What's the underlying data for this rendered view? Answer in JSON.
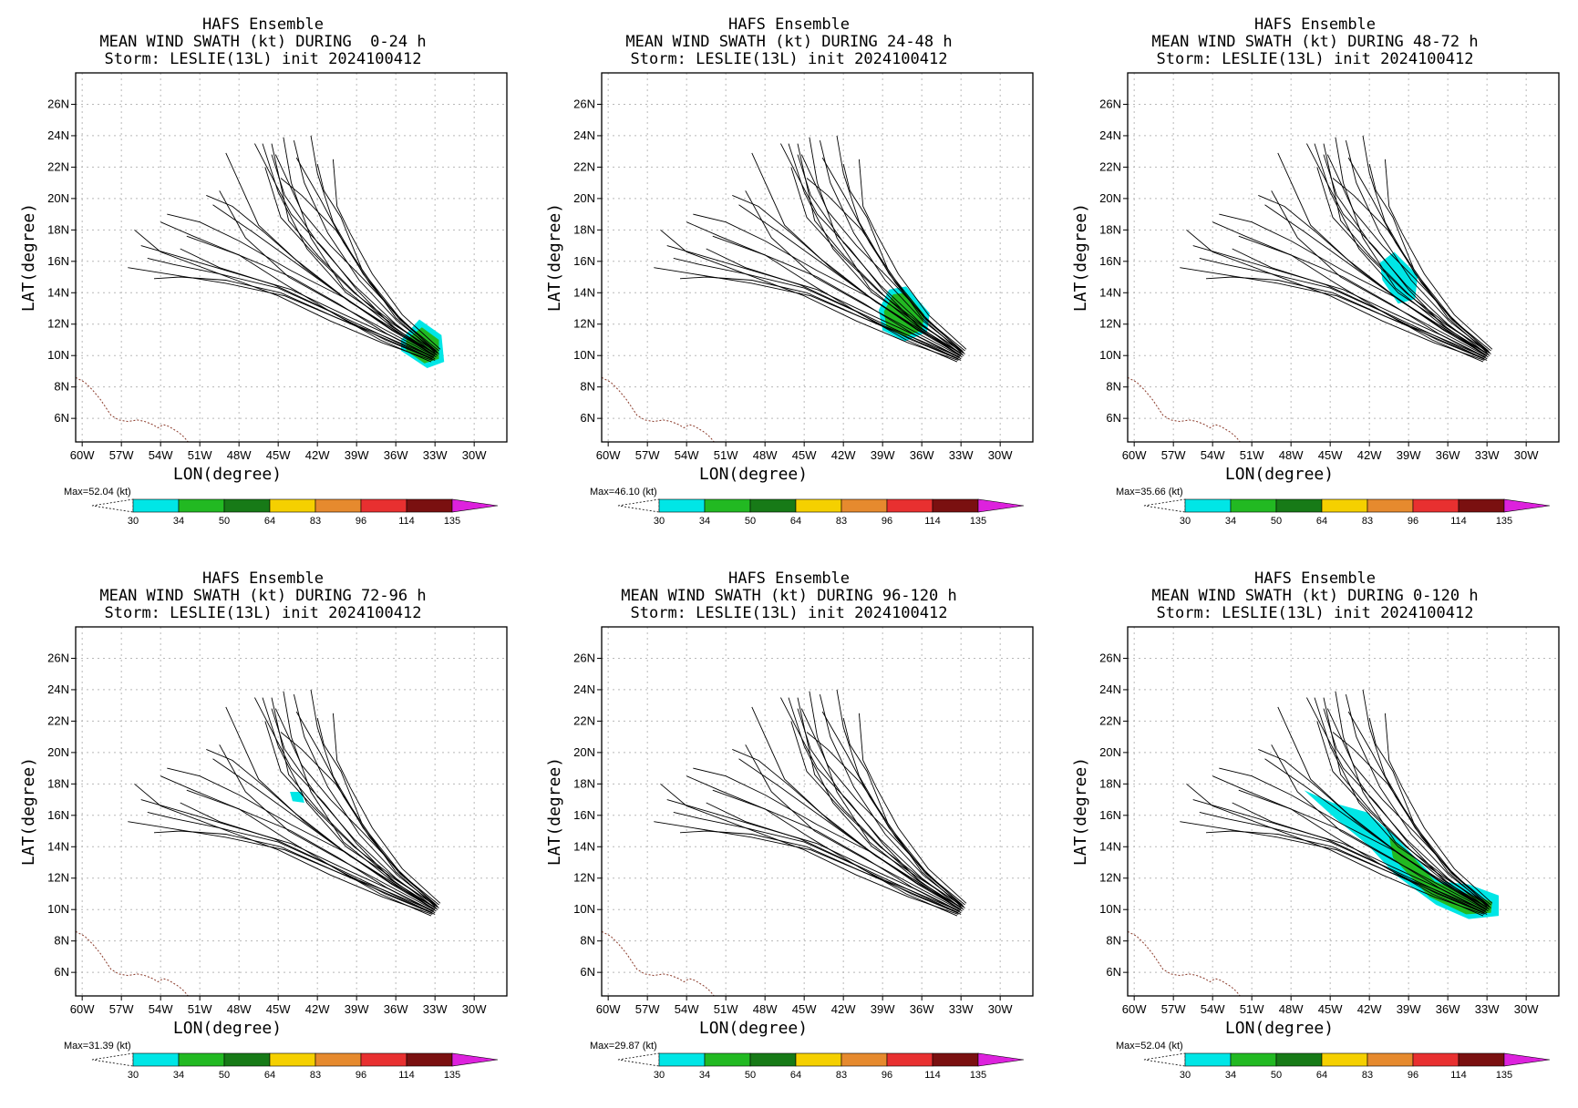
{
  "figure": {
    "panels": [
      {
        "title": [
          "HAFS Ensemble",
          "MEAN WIND SWATH (kt) DURING  0-24 h",
          "Storm: LESLIE(13L) init 2024100412"
        ],
        "max_label": "Max=52.04 (kt)",
        "swath": {
          "cyan": [
            [
              -35.6,
              11.0
            ],
            [
              -34.2,
              12.3
            ],
            [
              -32.5,
              11.3
            ],
            [
              -32.3,
              9.6
            ],
            [
              -33.6,
              9.2
            ],
            [
              -35.6,
              10.3
            ]
          ],
          "green": [
            [
              -35.2,
              11.0
            ],
            [
              -34.0,
              11.8
            ],
            [
              -32.7,
              11.0
            ],
            [
              -32.7,
              9.8
            ],
            [
              -33.8,
              9.5
            ],
            [
              -35.2,
              10.3
            ]
          ]
        }
      },
      {
        "title": [
          "HAFS Ensemble",
          "MEAN WIND SWATH (kt) DURING 24-48 h",
          "Storm: LESLIE(13L) init 2024100412"
        ],
        "max_label": "Max=46.10 (kt)",
        "swath": {
          "cyan": [
            [
              -39.3,
              12.9
            ],
            [
              -38.5,
              14.2
            ],
            [
              -37.2,
              14.4
            ],
            [
              -35.4,
              12.7
            ],
            [
              -35.6,
              11.5
            ],
            [
              -37.3,
              10.9
            ],
            [
              -39.0,
              11.6
            ]
          ],
          "green": [
            [
              -38.9,
              12.8
            ],
            [
              -38.2,
              13.9
            ],
            [
              -37.2,
              14.0
            ],
            [
              -35.8,
              12.6
            ],
            [
              -36.0,
              11.6
            ],
            [
              -37.3,
              11.2
            ],
            [
              -38.7,
              11.8
            ]
          ]
        }
      },
      {
        "title": [
          "HAFS Ensemble",
          "MEAN WIND SWATH (kt) DURING 48-72 h",
          "Storm: LESLIE(13L) init 2024100412"
        ],
        "max_label": "Max=35.66 (kt)",
        "swath": {
          "cyan": [
            [
              -41.2,
              15.9
            ],
            [
              -40.1,
              16.6
            ],
            [
              -38.3,
              15.1
            ],
            [
              -38.5,
              13.6
            ],
            [
              -39.8,
              13.3
            ],
            [
              -41.0,
              14.8
            ]
          ],
          "green": []
        }
      },
      {
        "title": [
          "HAFS Ensemble",
          "MEAN WIND SWATH (kt) DURING 72-96 h",
          "Storm: LESLIE(13L) init 2024100412"
        ],
        "max_label": "Max=31.39 (kt)",
        "swath": {
          "cyan": [
            [
              -44.1,
              17.5
            ],
            [
              -43.2,
              17.5
            ],
            [
              -43.0,
              16.8
            ],
            [
              -43.9,
              16.9
            ]
          ],
          "green": []
        }
      },
      {
        "title": [
          "HAFS Ensemble",
          "MEAN WIND SWATH (kt) DURING 96-120 h",
          "Storm: LESLIE(13L) init 2024100412"
        ],
        "max_label": "Max=29.87 (kt)",
        "swath": {
          "cyan": [],
          "green": []
        }
      },
      {
        "title": [
          "HAFS Ensemble",
          "MEAN WIND SWATH (kt) DURING 0-120 h",
          "Storm: LESLIE(13L) init 2024100412"
        ],
        "max_label": "Max=52.04 (kt)",
        "swath": {
          "cyan": [
            [
              -47.0,
              17.6
            ],
            [
              -44.8,
              16.8
            ],
            [
              -42.2,
              16.2
            ],
            [
              -40.2,
              14.8
            ],
            [
              -38.6,
              13.4
            ],
            [
              -36.7,
              11.8
            ],
            [
              -34.4,
              11.6
            ],
            [
              -32.1,
              10.9
            ],
            [
              -32.1,
              9.6
            ],
            [
              -34.4,
              9.4
            ],
            [
              -36.9,
              10.3
            ],
            [
              -40.0,
              12.2
            ],
            [
              -42.1,
              14.1
            ],
            [
              -44.6,
              15.8
            ]
          ],
          "green": [
            [
              -40.5,
              14.7
            ],
            [
              -38.6,
              13.3
            ],
            [
              -37.0,
              11.8
            ],
            [
              -34.5,
              11.0
            ],
            [
              -32.6,
              10.5
            ],
            [
              -32.7,
              9.8
            ],
            [
              -34.6,
              9.7
            ],
            [
              -37.4,
              10.8
            ],
            [
              -40.2,
              13.3
            ]
          ]
        }
      }
    ],
    "axes": {
      "xlabel": "LON(degree)",
      "ylabel": "LAT(degree)",
      "xticks": [
        "60W",
        "57W",
        "54W",
        "51W",
        "48W",
        "45W",
        "42W",
        "39W",
        "36W",
        "33W",
        "30W"
      ],
      "yticks": [
        "6N",
        "8N",
        "10N",
        "12N",
        "14N",
        "16N",
        "18N",
        "20N",
        "22N",
        "24N",
        "26N"
      ],
      "xlim": [
        -60.5,
        -27.5
      ],
      "ylim": [
        4.5,
        28.0
      ]
    },
    "colorbar": {
      "labels": [
        "30",
        "34",
        "50",
        "64",
        "83",
        "96",
        "114",
        "135"
      ],
      "colors": [
        "#00e6e6",
        "#22b922",
        "#177a17",
        "#f5d000",
        "#e68a2e",
        "#e83030",
        "#7a1010",
        "#dd22dd"
      ]
    }
  },
  "chart_data": {
    "type": "map",
    "description_units": "knots",
    "tracks_note": "ensemble member tracks of storm LESLIE(13L) starting near 33W 10N moving northwest",
    "tracks": [
      [
        [
          -33.0,
          10.0
        ],
        [
          -36.0,
          11.6
        ],
        [
          -39.5,
          13.4
        ],
        [
          -43.0,
          15.6
        ],
        [
          -46.5,
          18.3
        ],
        [
          -49.0,
          22.9
        ]
      ],
      [
        [
          -32.8,
          10.2
        ],
        [
          -36.2,
          12.0
        ],
        [
          -39.8,
          14.0
        ],
        [
          -42.8,
          16.8
        ],
        [
          -45.0,
          20.4
        ],
        [
          -46.2,
          23.5
        ]
      ],
      [
        [
          -33.0,
          9.8
        ],
        [
          -36.5,
          11.3
        ],
        [
          -40.2,
          12.7
        ],
        [
          -44.0,
          14.2
        ],
        [
          -48.5,
          15.3
        ],
        [
          -53.0,
          16.4
        ],
        [
          -55.5,
          17.0
        ]
      ],
      [
        [
          -32.9,
          10.1
        ],
        [
          -36.4,
          11.9
        ],
        [
          -40.0,
          14.3
        ],
        [
          -42.5,
          17.5
        ],
        [
          -44.0,
          21.0
        ],
        [
          -44.6,
          23.9
        ]
      ],
      [
        [
          -33.1,
          9.9
        ],
        [
          -36.8,
          11.2
        ],
        [
          -40.5,
          12.4
        ],
        [
          -44.5,
          13.8
        ],
        [
          -49.0,
          14.6
        ],
        [
          -53.5,
          15.2
        ],
        [
          -56.5,
          15.6
        ]
      ],
      [
        [
          -32.7,
          10.3
        ],
        [
          -35.8,
          12.4
        ],
        [
          -38.5,
          15.2
        ],
        [
          -40.8,
          18.5
        ],
        [
          -42.0,
          21.6
        ],
        [
          -42.5,
          24.0
        ]
      ],
      [
        [
          -33.2,
          9.7
        ],
        [
          -37.0,
          10.8
        ],
        [
          -41.0,
          12.2
        ],
        [
          -45.0,
          13.8
        ],
        [
          -49.5,
          15.2
        ],
        [
          -54.0,
          16.6
        ],
        [
          -56.0,
          18.0
        ]
      ],
      [
        [
          -32.8,
          10.0
        ],
        [
          -36.2,
          11.8
        ],
        [
          -39.0,
          14.2
        ],
        [
          -41.5,
          16.8
        ],
        [
          -44.0,
          19.0
        ],
        [
          -46.8,
          23.5
        ]
      ],
      [
        [
          -33.0,
          10.2
        ],
        [
          -36.0,
          12.4
        ],
        [
          -38.6,
          15.5
        ],
        [
          -40.2,
          18.8
        ],
        [
          -41.5,
          20.5
        ],
        [
          -42.0,
          22.2
        ]
      ],
      [
        [
          -33.3,
          9.6
        ],
        [
          -37.2,
          11.0
        ],
        [
          -41.0,
          12.8
        ],
        [
          -45.0,
          14.3
        ],
        [
          -49.5,
          15.2
        ],
        [
          -53.0,
          15.8
        ],
        [
          -55.0,
          16.2
        ]
      ],
      [
        [
          -32.6,
          10.4
        ],
        [
          -35.5,
          12.6
        ],
        [
          -37.8,
          15.2
        ],
        [
          -39.5,
          17.8
        ],
        [
          -40.5,
          19.5
        ],
        [
          -40.8,
          22.5
        ]
      ],
      [
        [
          -33.1,
          10.0
        ],
        [
          -36.6,
          11.9
        ],
        [
          -40.0,
          13.7
        ],
        [
          -44.0,
          15.4
        ],
        [
          -48.0,
          17.3
        ],
        [
          -51.0,
          18.5
        ],
        [
          -53.5,
          19.0
        ]
      ],
      [
        [
          -32.9,
          9.9
        ],
        [
          -36.5,
          11.5
        ],
        [
          -40.3,
          13.2
        ],
        [
          -44.2,
          15.0
        ],
        [
          -47.5,
          17.5
        ],
        [
          -49.5,
          20.5
        ]
      ],
      [
        [
          -33.0,
          10.1
        ],
        [
          -36.0,
          12.0
        ],
        [
          -39.2,
          14.5
        ],
        [
          -42.0,
          17.2
        ],
        [
          -44.5,
          20.2
        ],
        [
          -45.5,
          22.8
        ]
      ],
      [
        [
          -33.2,
          9.8
        ],
        [
          -36.9,
          11.1
        ],
        [
          -40.8,
          12.5
        ],
        [
          -44.8,
          14.0
        ],
        [
          -49.0,
          14.8
        ],
        [
          -52.5,
          15.0
        ],
        [
          -54.5,
          14.9
        ]
      ],
      [
        [
          -32.8,
          10.2
        ],
        [
          -35.9,
          12.2
        ],
        [
          -38.8,
          14.8
        ],
        [
          -41.2,
          17.8
        ],
        [
          -43.0,
          21.0
        ],
        [
          -43.8,
          23.7
        ]
      ],
      [
        [
          -33.0,
          10.0
        ],
        [
          -36.3,
          11.6
        ],
        [
          -39.8,
          13.6
        ],
        [
          -43.5,
          15.8
        ],
        [
          -47.0,
          17.9
        ],
        [
          -50.0,
          19.6
        ]
      ],
      [
        [
          -32.9,
          10.3
        ],
        [
          -35.7,
          12.3
        ],
        [
          -38.0,
          14.6
        ],
        [
          -40.0,
          17.2
        ],
        [
          -41.8,
          20.0
        ],
        [
          -43.6,
          22.6
        ]
      ],
      [
        [
          -33.1,
          9.9
        ],
        [
          -36.7,
          11.4
        ],
        [
          -40.4,
          13.3
        ],
        [
          -44.0,
          15.0
        ],
        [
          -48.0,
          16.4
        ],
        [
          -52.0,
          17.6
        ]
      ],
      [
        [
          -32.7,
          10.1
        ],
        [
          -35.9,
          11.9
        ],
        [
          -39.2,
          14.0
        ],
        [
          -42.3,
          16.5
        ],
        [
          -44.8,
          18.8
        ],
        [
          -46.0,
          22.0
        ]
      ],
      [
        [
          -33.0,
          9.7
        ],
        [
          -36.8,
          11.0
        ],
        [
          -40.6,
          12.6
        ],
        [
          -44.6,
          14.6
        ],
        [
          -48.0,
          16.4
        ],
        [
          -51.5,
          17.6
        ],
        [
          -54.0,
          18.5
        ]
      ],
      [
        [
          -32.8,
          10.2
        ],
        [
          -35.6,
          12.3
        ],
        [
          -38.2,
          15.0
        ],
        [
          -40.6,
          18.0
        ],
        [
          -43.2,
          20.2
        ],
        [
          -44.8,
          21.3
        ]
      ],
      [
        [
          -33.1,
          10.0
        ],
        [
          -36.1,
          11.8
        ],
        [
          -39.0,
          13.9
        ],
        [
          -42.0,
          16.4
        ],
        [
          -44.2,
          18.6
        ],
        [
          -45.5,
          23.5
        ]
      ],
      [
        [
          -32.9,
          10.1
        ],
        [
          -36.4,
          11.7
        ],
        [
          -40.1,
          13.8
        ],
        [
          -43.8,
          16.2
        ],
        [
          -46.0,
          17.8
        ],
        [
          -48.5,
          19.5
        ],
        [
          -50.5,
          20.2
        ]
      ],
      [
        [
          -33.0,
          10.3
        ],
        [
          -35.8,
          12.5
        ],
        [
          -38.5,
          14.9
        ],
        [
          -41.0,
          17.0
        ],
        [
          -43.2,
          19.2
        ],
        [
          -45.2,
          22.8
        ]
      ],
      [
        [
          -33.2,
          9.8
        ],
        [
          -37.1,
          11.3
        ],
        [
          -41.2,
          12.9
        ],
        [
          -45.3,
          14.5
        ],
        [
          -49.5,
          15.6
        ],
        [
          -52.5,
          16.8
        ]
      ]
    ],
    "coastline": [
      [
        -60.5,
        8.6
      ],
      [
        -59.8,
        8.3
      ],
      [
        -59.2,
        7.8
      ],
      [
        -58.6,
        7.2
      ],
      [
        -58.2,
        6.7
      ],
      [
        -57.8,
        6.2
      ],
      [
        -57.2,
        5.9
      ],
      [
        -56.5,
        5.8
      ],
      [
        -55.8,
        5.9
      ],
      [
        -55.2,
        5.8
      ],
      [
        -54.6,
        5.6
      ],
      [
        -54.2,
        5.4
      ],
      [
        -53.8,
        5.6
      ],
      [
        -53.4,
        5.5
      ],
      [
        -53.0,
        5.3
      ],
      [
        -52.6,
        5.1
      ],
      [
        -52.2,
        4.8
      ],
      [
        -51.9,
        4.5
      ]
    ]
  }
}
